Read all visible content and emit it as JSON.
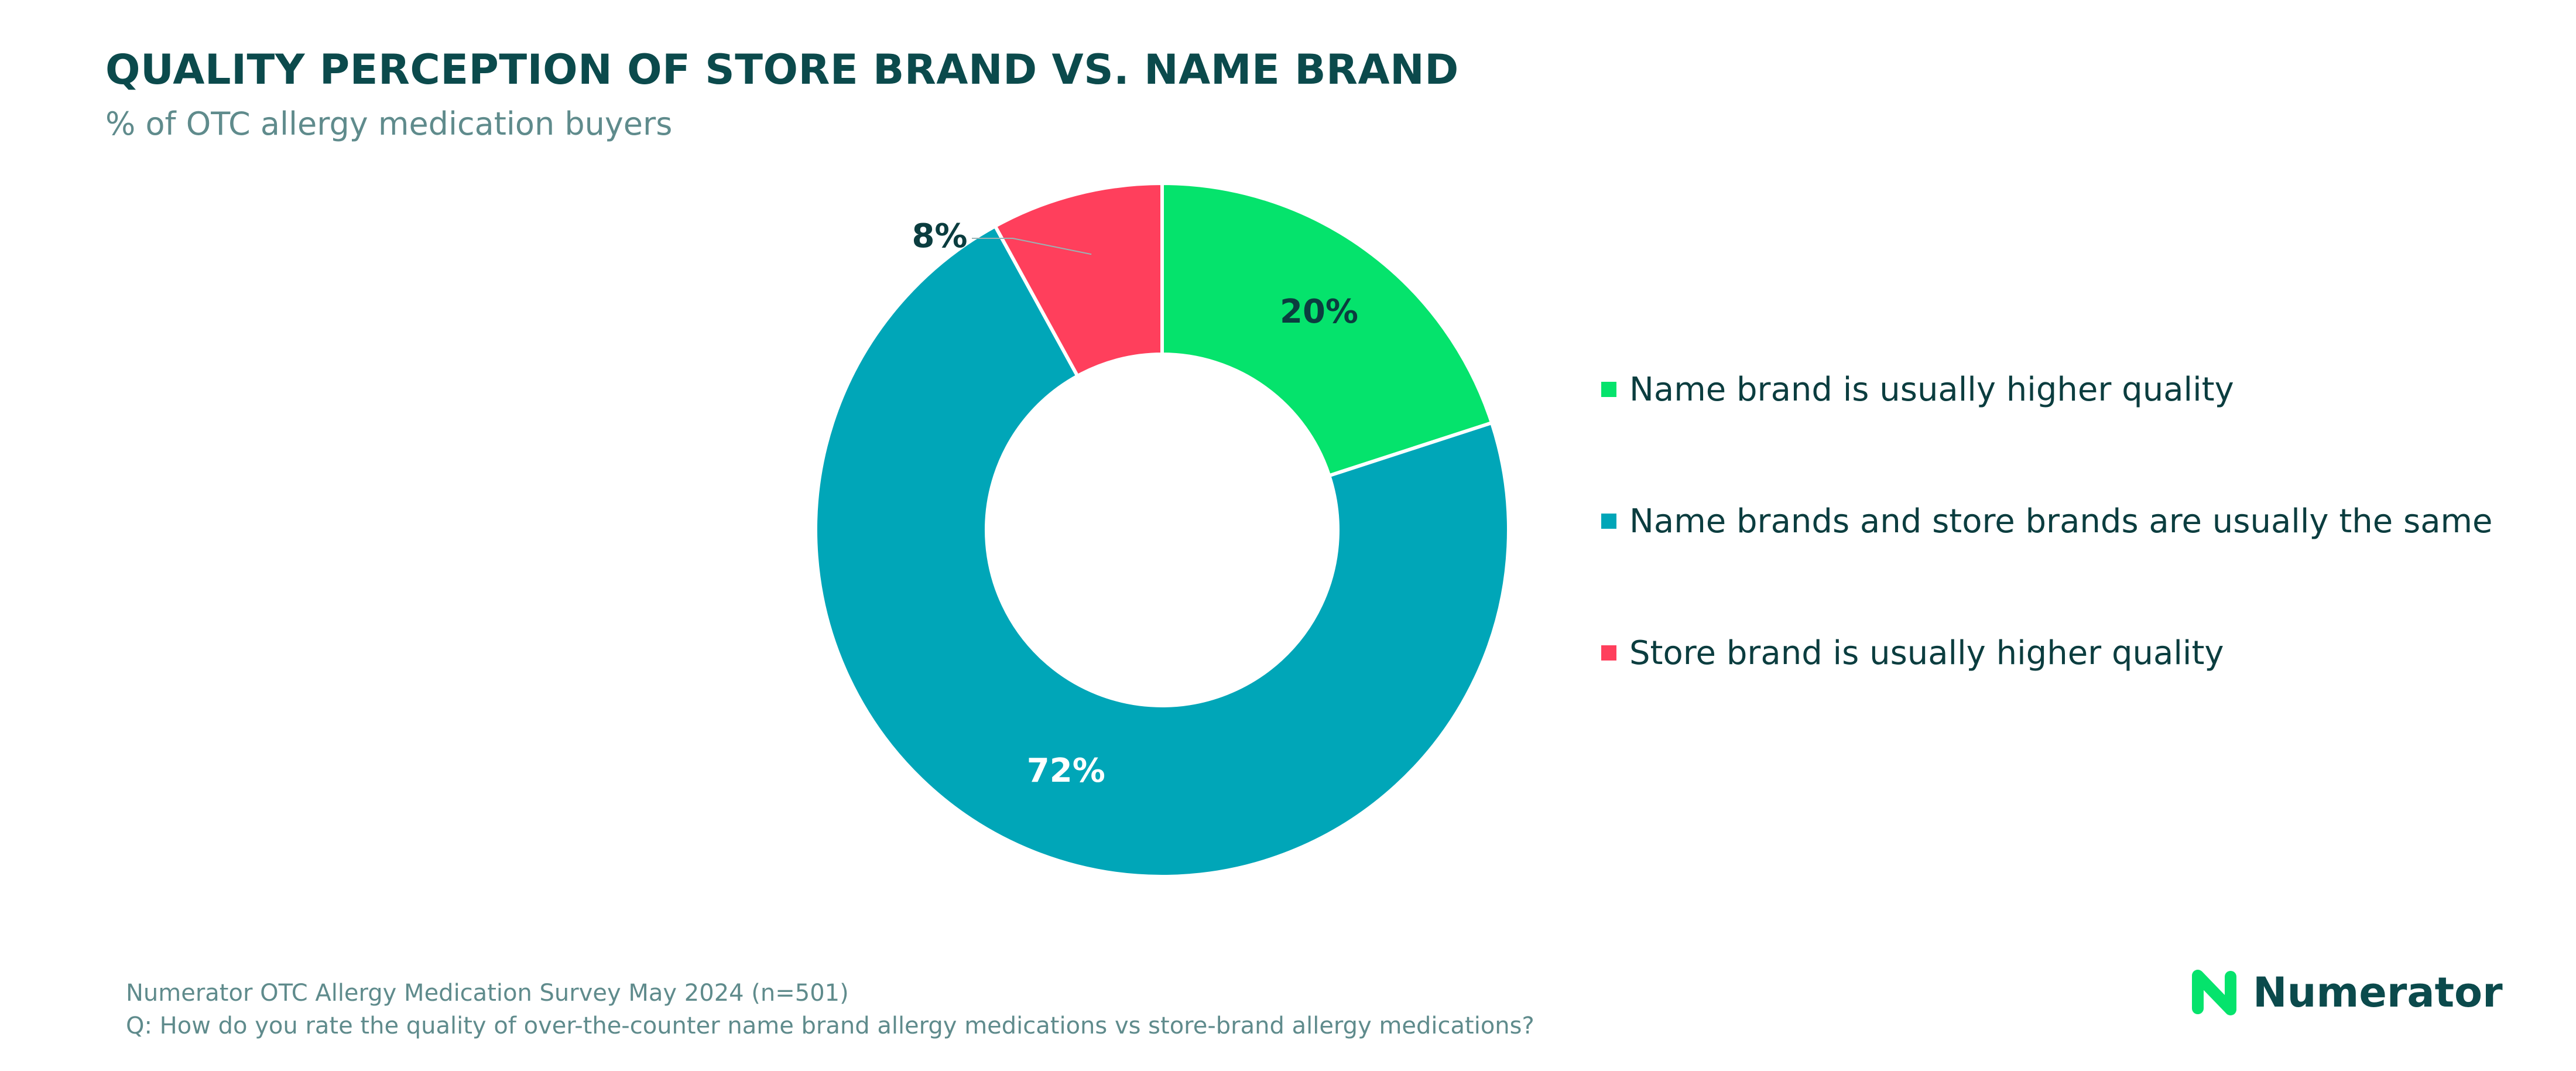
{
  "header": {
    "title": "QUALITY PERCEPTION OF STORE BRAND VS. NAME BRAND",
    "subtitle": "% of OTC allergy medication buyers"
  },
  "chart_data": {
    "type": "pie",
    "title": "QUALITY PERCEPTION OF STORE BRAND VS. NAME BRAND",
    "subtitle": "% of OTC allergy medication buyers",
    "donut": true,
    "legend_placement": "right",
    "categories": [
      "Name brand is usually higher quality",
      "Name brands and store brands are usually the same",
      "Store brand is usually higher quality"
    ],
    "values": [
      20,
      72,
      8
    ],
    "value_labels": [
      "20%",
      "72%",
      "8%"
    ],
    "colors": [
      "#05e36c",
      "#00a6b8",
      "#ff3f5c"
    ],
    "label_colors": [
      "#0b3d3f",
      "#ffffff",
      "#0b3d3f"
    ]
  },
  "footer": {
    "source_line1": "Numerator OTC Allergy Medication Survey May 2024 (n=501)",
    "source_line2": "Q: How do you rate the quality of over-the-counter name brand allergy medications vs store-brand allergy medications?"
  },
  "brand": {
    "logo_text": "Numerator",
    "logo_icon": "numerator-n-icon",
    "logo_color": "#05e36c"
  }
}
